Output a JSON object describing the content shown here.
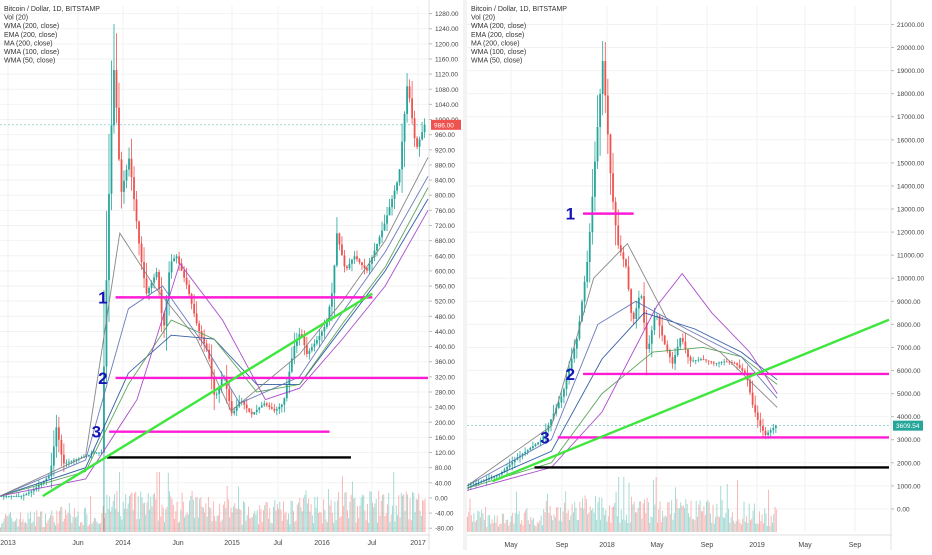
{
  "charts_meta": {
    "colors": {
      "pink": "#ff1cd4",
      "green": "#3ee63e",
      "black": "#000000",
      "label": "#1515b8",
      "up": "#26a69a",
      "down": "#ef5350",
      "wma200": "#1f4e9b",
      "ema200": "#4f9c4f",
      "ma200": "#a13ac5",
      "wma100": "#5b6db5",
      "wma50": "#7a7a7a"
    }
  },
  "chart_data": [
    {
      "type": "candlestick",
      "legend": [
        "Bitcoin / Dollar, 1D, BITSTAMP",
        "Vol (20)",
        "WMA (200, close)",
        "EMA (200, close)",
        "MA (200, close)",
        "WMA (100, close)",
        "WMA (50, close)"
      ],
      "x_ticks": [
        "2013",
        "Jun",
        "2014",
        "Jun",
        "2015",
        "Jul",
        "2016",
        "Jul",
        "2017"
      ],
      "y_ticks": [
        "1280.00",
        "1240.00",
        "1200.00",
        "1160.00",
        "1120.00",
        "1080.00",
        "1040.00",
        "1000.00",
        "960.00",
        "920.00",
        "880.00",
        "840.00",
        "800.00",
        "760.00",
        "720.00",
        "680.00",
        "640.00",
        "600.00",
        "560.00",
        "520.00",
        "480.00",
        "440.00",
        "400.00",
        "360.00",
        "320.00",
        "280.00",
        "240.00",
        "200.00",
        "160.00",
        "120.00",
        "80.00",
        "40.00",
        "0.00",
        "-40.00",
        "-80.00"
      ],
      "ylim": [
        -90,
        1300
      ],
      "xlim": [
        0,
        1000
      ],
      "last_price": "986.00",
      "last_value": 986,
      "price_path": [
        [
          0,
          5
        ],
        [
          55,
          5
        ],
        [
          80,
          20
        ],
        [
          120,
          60
        ],
        [
          135,
          190
        ],
        [
          150,
          90
        ],
        [
          175,
          100
        ],
        [
          205,
          110
        ],
        [
          220,
          120
        ],
        [
          240,
          120
        ],
        [
          260,
          900
        ],
        [
          270,
          1150
        ],
        [
          285,
          800
        ],
        [
          305,
          900
        ],
        [
          330,
          650
        ],
        [
          345,
          540
        ],
        [
          370,
          600
        ],
        [
          385,
          440
        ],
        [
          400,
          620
        ],
        [
          415,
          640
        ],
        [
          440,
          560
        ],
        [
          465,
          450
        ],
        [
          490,
          380
        ],
        [
          505,
          260
        ],
        [
          525,
          330
        ],
        [
          545,
          220
        ],
        [
          565,
          260
        ],
        [
          590,
          220
        ],
        [
          620,
          250
        ],
        [
          645,
          230
        ],
        [
          665,
          250
        ],
        [
          690,
          400
        ],
        [
          705,
          440
        ],
        [
          720,
          380
        ],
        [
          745,
          420
        ],
        [
          765,
          460
        ],
        [
          780,
          550
        ],
        [
          790,
          700
        ],
        [
          810,
          600
        ],
        [
          830,
          640
        ],
        [
          860,
          600
        ],
        [
          900,
          720
        ],
        [
          935,
          850
        ],
        [
          955,
          1100
        ],
        [
          975,
          920
        ],
        [
          995,
          986
        ]
      ],
      "mas": [
        {
          "key": "wma200",
          "path": [
            [
              0,
              5
            ],
            [
              200,
              80
            ],
            [
              300,
              330
            ],
            [
              400,
              430
            ],
            [
              500,
              420
            ],
            [
              600,
              300
            ],
            [
              700,
              300
            ],
            [
              800,
              450
            ],
            [
              900,
              600
            ],
            [
              1000,
              790
            ]
          ]
        },
        {
          "key": "ema200",
          "path": [
            [
              0,
              5
            ],
            [
              200,
              70
            ],
            [
              300,
              300
            ],
            [
              400,
              470
            ],
            [
              500,
              420
            ],
            [
              600,
              280
            ],
            [
              700,
              300
            ],
            [
              800,
              460
            ],
            [
              900,
              610
            ],
            [
              1000,
              820
            ]
          ]
        },
        {
          "key": "ma200",
          "path": [
            [
              0,
              5
            ],
            [
              200,
              50
            ],
            [
              320,
              260
            ],
            [
              420,
              620
            ],
            [
              520,
              470
            ],
            [
              620,
              260
            ],
            [
              700,
              290
            ],
            [
              800,
              420
            ],
            [
              900,
              560
            ],
            [
              1000,
              760
            ]
          ]
        },
        {
          "key": "wma100",
          "path": [
            [
              0,
              5
            ],
            [
              200,
              100
            ],
            [
              300,
              500
            ],
            [
              380,
              560
            ],
            [
              480,
              400
            ],
            [
              560,
              250
            ],
            [
              700,
              320
            ],
            [
              800,
              490
            ],
            [
              900,
              650
            ],
            [
              1000,
              850
            ]
          ]
        },
        {
          "key": "wma50",
          "path": [
            [
              0,
              5
            ],
            [
              200,
              110
            ],
            [
              280,
              700
            ],
            [
              360,
              560
            ],
            [
              460,
              420
            ],
            [
              540,
              230
            ],
            [
              700,
              380
            ],
            [
              800,
              520
            ],
            [
              900,
              680
            ],
            [
              1000,
              900
            ]
          ]
        }
      ],
      "annotations": [
        {
          "label": "1",
          "y": 530,
          "x_start": 270,
          "x_end": 870,
          "color": "pink"
        },
        {
          "label": "2",
          "y": 317,
          "x_start": 270,
          "x_end": 1000,
          "color": "pink"
        },
        {
          "label": "3",
          "y": 175,
          "x_start": 255,
          "x_end": 770,
          "color": "pink"
        },
        {
          "label": "",
          "y": 107,
          "x_start": 250,
          "x_end": 820,
          "color": "black"
        }
      ],
      "trendline": {
        "from": [
          100,
          5
        ],
        "to": [
          870,
          540
        ],
        "color": "green"
      }
    },
    {
      "type": "candlestick",
      "legend": [
        "Bitcoin / Dollar, 1D, BITSTAMP",
        "Vol (20)",
        "WMA (200, close)",
        "EMA (200, close)",
        "MA (200, close)",
        "WMA (100, close)",
        "WMA (50, close)"
      ],
      "x_ticks": [
        "May",
        "Sep",
        "2018",
        "May",
        "Sep",
        "2019",
        "May",
        "Sep"
      ],
      "y_ticks": [
        "21000.00",
        "20000.00",
        "19000.00",
        "18000.00",
        "17000.00",
        "16000.00",
        "15000.00",
        "14000.00",
        "13000.00",
        "12000.00",
        "11000.00",
        "10000.00",
        "9000.00",
        "8000.00",
        "7000.00",
        "6000.00",
        "5000.00",
        "4000.00",
        "3000.00",
        "2000.00",
        "1000.00",
        "0.00"
      ],
      "ylim": [
        -1000,
        21800
      ],
      "xlim": [
        0,
        1000
      ],
      "last_price": "3609.54",
      "last_value": 3609.54,
      "price_path": [
        [
          0,
          1000
        ],
        [
          40,
          1200
        ],
        [
          80,
          1500
        ],
        [
          120,
          2200
        ],
        [
          150,
          2600
        ],
        [
          180,
          3000
        ],
        [
          205,
          4000
        ],
        [
          230,
          5000
        ],
        [
          265,
          7500
        ],
        [
          290,
          11000
        ],
        [
          310,
          16000
        ],
        [
          325,
          19500
        ],
        [
          345,
          14000
        ],
        [
          360,
          11500
        ],
        [
          380,
          10500
        ],
        [
          395,
          8000
        ],
        [
          415,
          9500
        ],
        [
          430,
          6700
        ],
        [
          450,
          8600
        ],
        [
          470,
          7200
        ],
        [
          490,
          6300
        ],
        [
          510,
          7500
        ],
        [
          530,
          6400
        ],
        [
          560,
          6500
        ],
        [
          590,
          6300
        ],
        [
          615,
          6400
        ],
        [
          640,
          6300
        ],
        [
          665,
          5800
        ],
        [
          680,
          4500
        ],
        [
          695,
          3700
        ],
        [
          710,
          3200
        ],
        [
          735,
          3609.54
        ]
      ],
      "mas": [
        {
          "key": "wma200",
          "path": [
            [
              0,
              900
            ],
            [
              200,
              2500
            ],
            [
              320,
              6500
            ],
            [
              420,
              8500
            ],
            [
              540,
              7800
            ],
            [
              650,
              6800
            ],
            [
              735,
              5600
            ]
          ]
        },
        {
          "key": "ema200",
          "path": [
            [
              0,
              900
            ],
            [
              200,
              2000
            ],
            [
              320,
              5000
            ],
            [
              440,
              6800
            ],
            [
              560,
              7000
            ],
            [
              650,
              6600
            ],
            [
              735,
              5400
            ]
          ]
        },
        {
          "key": "ma200",
          "path": [
            [
              0,
              800
            ],
            [
              200,
              1800
            ],
            [
              320,
              4200
            ],
            [
              450,
              8800
            ],
            [
              510,
              10200
            ],
            [
              580,
              8500
            ],
            [
              670,
              6800
            ],
            [
              735,
              5000
            ]
          ]
        },
        {
          "key": "wma100",
          "path": [
            [
              0,
              1000
            ],
            [
              200,
              3000
            ],
            [
              310,
              8000
            ],
            [
              400,
              9000
            ],
            [
              520,
              7800
            ],
            [
              650,
              6600
            ],
            [
              735,
              4800
            ]
          ]
        },
        {
          "key": "wma50",
          "path": [
            [
              0,
              1000
            ],
            [
              200,
              3600
            ],
            [
              300,
              10000
            ],
            [
              380,
              11500
            ],
            [
              480,
              8000
            ],
            [
              600,
              6800
            ],
            [
              735,
              4400
            ]
          ]
        }
      ],
      "annotations": [
        {
          "label": "1",
          "y": 12800,
          "x_start": 275,
          "x_end": 395,
          "color": "pink"
        },
        {
          "label": "2",
          "y": 5850,
          "x_start": 275,
          "x_end": 1000,
          "color": "pink"
        },
        {
          "label": "3",
          "y": 3100,
          "x_start": 215,
          "x_end": 1000,
          "color": "pink"
        },
        {
          "label": "",
          "y": 1800,
          "x_start": 160,
          "x_end": 1000,
          "color": "black"
        }
      ],
      "trendline": {
        "from": [
          60,
          1200
        ],
        "to": [
          1000,
          8200
        ],
        "color": "green"
      }
    }
  ]
}
